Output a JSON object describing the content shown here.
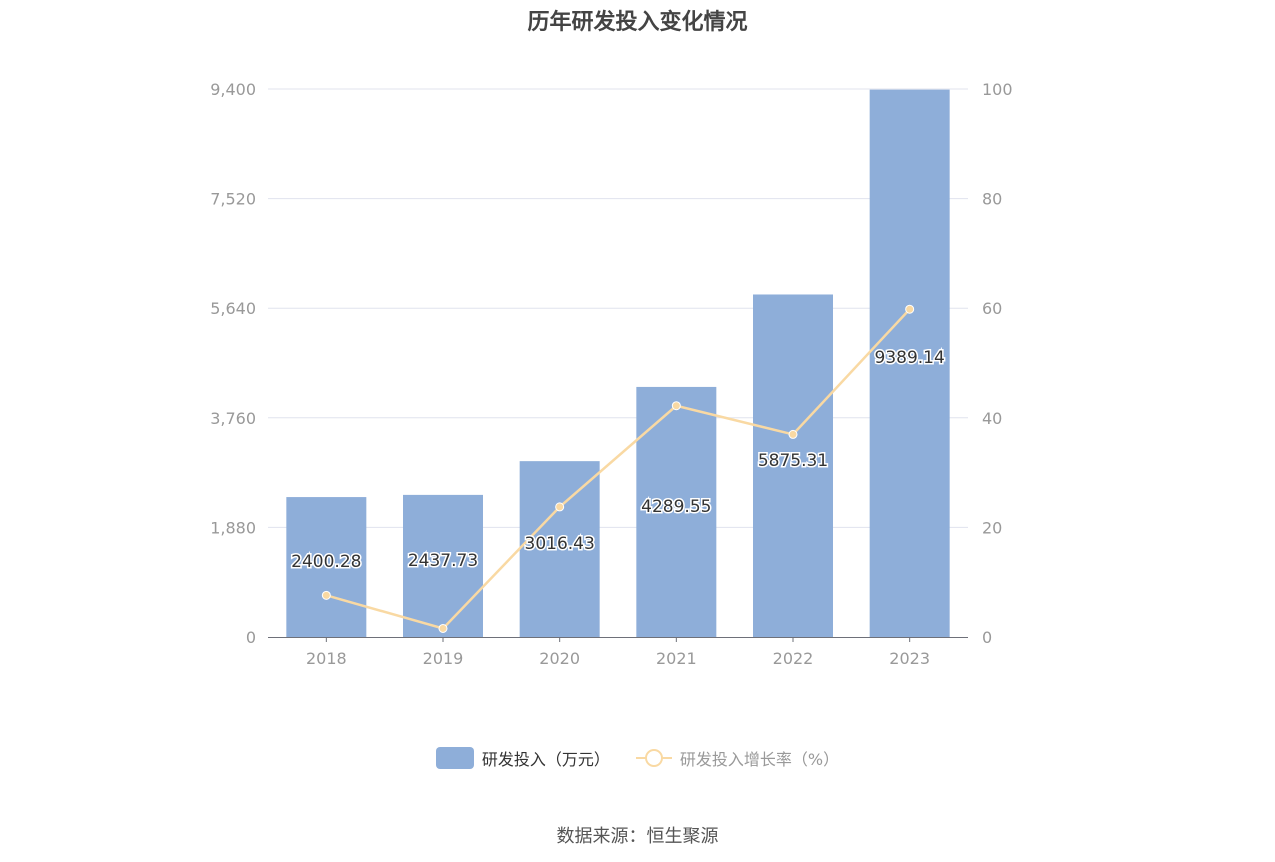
{
  "chart_title": "历年研发投入变化情况",
  "source_text": "数据来源：恒生聚源",
  "legend": {
    "bar_label": "研发投入（万元）",
    "line_label": "研发投入增长率（%）"
  },
  "colors": {
    "bar": "#8eaed9",
    "line": "#f9d9a3",
    "grid": "#e0e3ee",
    "axis_text": "#999999",
    "label_text": "#333333"
  },
  "chart_data": {
    "type": "bar",
    "title": "历年研发投入变化情况",
    "categories": [
      "2018",
      "2019",
      "2020",
      "2021",
      "2022",
      "2023"
    ],
    "y_left_ticks": [
      "0",
      "1,880",
      "3,760",
      "5,640",
      "7,520",
      "9,400"
    ],
    "y_right_ticks": [
      "0",
      "20",
      "40",
      "60",
      "80",
      "100"
    ],
    "ylim_left": [
      0,
      9400
    ],
    "ylim_right": [
      0,
      100
    ],
    "grid": true,
    "legend_position": "bottom",
    "series": [
      {
        "name": "研发投入（万元）",
        "type": "bar",
        "axis": "left",
        "values": [
          2400.28,
          2437.73,
          3016.43,
          4289.55,
          5875.31,
          9389.14
        ],
        "labels": [
          "2400.28",
          "2437.73",
          "3016.43",
          "4289.55",
          "5875.31",
          "9389.14"
        ]
      },
      {
        "name": "研发投入增长率（%）",
        "type": "line",
        "axis": "right",
        "values": [
          7.6,
          1.56,
          23.74,
          42.2,
          36.97,
          59.81
        ]
      }
    ]
  }
}
